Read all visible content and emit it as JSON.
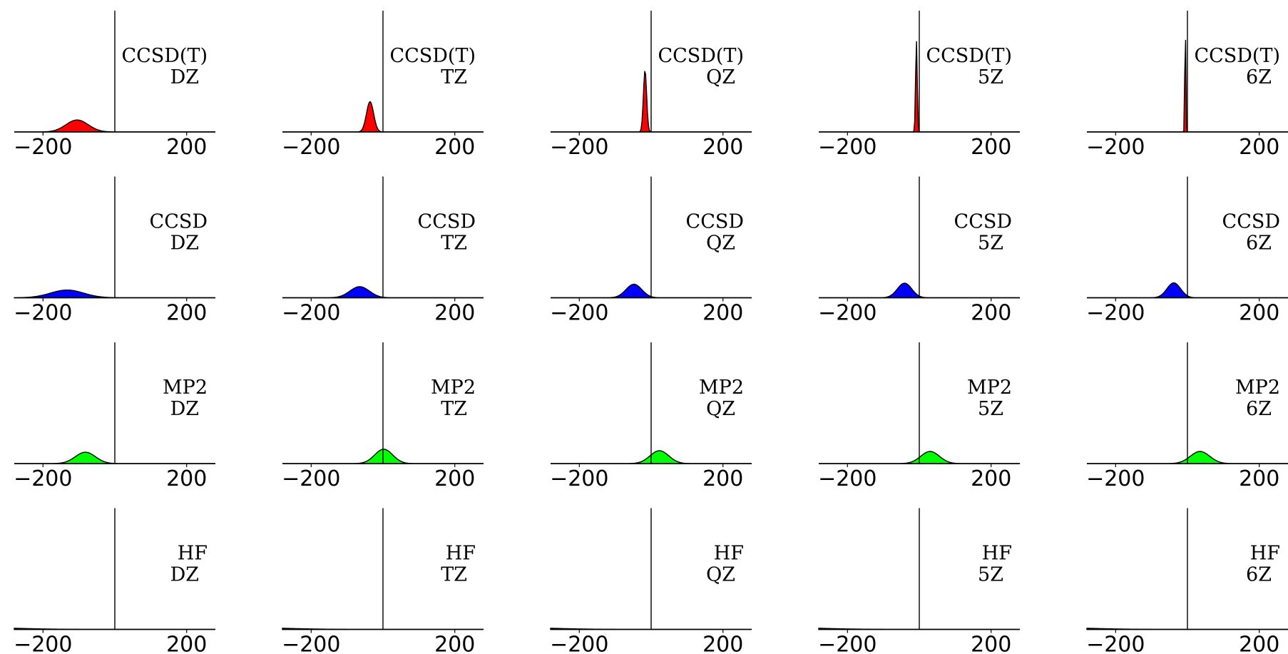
{
  "figure": {
    "rows": [
      "CCSD(T)",
      "CCSD",
      "MP2",
      "HF"
    ],
    "cols": [
      "DZ",
      "TZ",
      "QZ",
      "5Z",
      "6Z"
    ]
  },
  "chart_data": {
    "type": "area",
    "layout": "grid 4 rows x 5 columns",
    "description_note": "Each panel is a filled Gaussian-shaped distribution with a vertical reference line at x = 0.",
    "x_ticks": [
      -200,
      200
    ],
    "xlim": [
      -280,
      280
    ],
    "ylim": [
      0,
      0.16
    ],
    "axis_style": "horizontal baseline only; vertical line at x=0; no y axis labels",
    "series_colors": {
      "CCSD(T)": "#ff0000",
      "CCSD": "#0000ff",
      "MP2": "#00ff00",
      "HF": "#00cc00"
    },
    "panels": [
      {
        "method": "CCSD(T)",
        "basis": "DZ",
        "color": "#ff0000",
        "mean": -105,
        "sd": 31,
        "peak": 0.0158
      },
      {
        "method": "CCSD(T)",
        "basis": "TZ",
        "color": "#ff0000",
        "mean": -36,
        "sd": 10,
        "peak": 0.04
      },
      {
        "method": "CCSD(T)",
        "basis": "QZ",
        "color": "#ff0000",
        "mean": -17,
        "sd": 4.5,
        "peak": 0.0816
      },
      {
        "method": "CCSD(T)",
        "basis": "5Z",
        "color": "#ff0000",
        "mean": -8,
        "sd": 2.3,
        "peak": 0.1212
      },
      {
        "method": "CCSD(T)",
        "basis": "6Z",
        "color": "#ff0000",
        "mean": -6,
        "sd": 1.4,
        "peak": 0.15
      },
      {
        "method": "CCSD",
        "basis": "DZ",
        "color": "#0000ff",
        "mean": -133,
        "sd": 46,
        "peak": 0.0102
      },
      {
        "method": "CCSD",
        "basis": "TZ",
        "color": "#0000ff",
        "mean": -65,
        "sd": 27,
        "peak": 0.0147
      },
      {
        "method": "CCSD",
        "basis": "QZ",
        "color": "#0000ff",
        "mean": -48,
        "sd": 22,
        "peak": 0.0179
      },
      {
        "method": "CCSD",
        "basis": "5Z",
        "color": "#0000ff",
        "mean": -41,
        "sd": 20,
        "peak": 0.0193
      },
      {
        "method": "CCSD",
        "basis": "6Z",
        "color": "#0000ff",
        "mean": -38,
        "sd": 19,
        "peak": 0.0197
      },
      {
        "method": "MP2",
        "basis": "DZ",
        "color": "#00ff00",
        "mean": -82,
        "sd": 28,
        "peak": 0.015
      },
      {
        "method": "MP2",
        "basis": "TZ",
        "color": "#00ff00",
        "mean": 2,
        "sd": 25,
        "peak": 0.019
      },
      {
        "method": "MP2",
        "basis": "QZ",
        "color": "#00ff00",
        "mean": 23,
        "sd": 26,
        "peak": 0.017
      },
      {
        "method": "MP2",
        "basis": "5Z",
        "color": "#00ff00",
        "mean": 30,
        "sd": 26,
        "peak": 0.016
      },
      {
        "method": "MP2",
        "basis": "6Z",
        "color": "#00ff00",
        "mean": 35,
        "sd": 27,
        "peak": 0.016
      },
      {
        "method": "HF",
        "basis": "DZ",
        "color": "#00cc00",
        "mean": -400,
        "sd": 120,
        "peak": 0.0025
      },
      {
        "method": "HF",
        "basis": "TZ",
        "color": "#00cc00",
        "mean": -400,
        "sd": 120,
        "peak": 0.0025
      },
      {
        "method": "HF",
        "basis": "QZ",
        "color": "#00cc00",
        "mean": -400,
        "sd": 120,
        "peak": 0.0025
      },
      {
        "method": "HF",
        "basis": "5Z",
        "color": "#00cc00",
        "mean": -400,
        "sd": 120,
        "peak": 0.0025
      },
      {
        "method": "HF",
        "basis": "6Z",
        "color": "#00cc00",
        "mean": -400,
        "sd": 120,
        "peak": 0.0025
      }
    ]
  }
}
